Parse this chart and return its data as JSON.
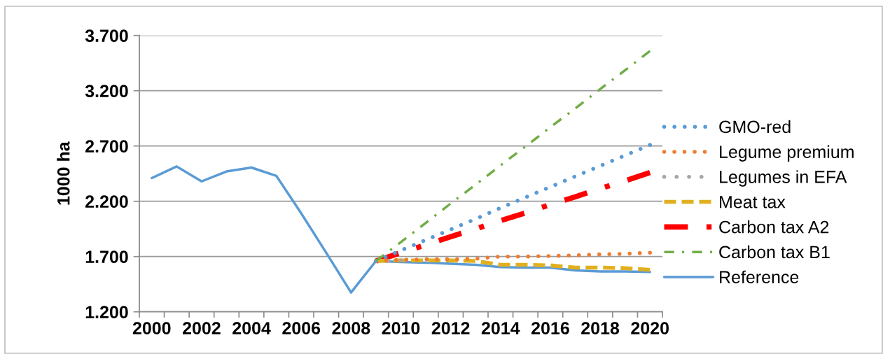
{
  "chart_data": {
    "type": "line",
    "ylabel": "1000 ha",
    "categories": [
      "2000",
      null,
      "2002",
      null,
      "2004",
      null,
      "2006",
      null,
      "2008",
      null,
      "2010",
      null,
      "2012",
      null,
      "2014",
      null,
      "2016",
      null,
      "2018",
      null,
      "2020"
    ],
    "series": [
      {
        "name": "GMO-red",
        "color": "#5b9bd5",
        "line_style": "dotted",
        "values": [
          null,
          null,
          null,
          null,
          null,
          null,
          null,
          null,
          null,
          1660,
          1755,
          1850,
          1945,
          2040,
          2140,
          2235,
          2330,
          2425,
          2520,
          2615,
          2710
        ]
      },
      {
        "name": "Legume premium",
        "color": "#ed7d31",
        "line_style": "dotted",
        "values": [
          null,
          null,
          null,
          null,
          null,
          null,
          null,
          null,
          null,
          1660,
          1670,
          1675,
          1675,
          1680,
          1700,
          1700,
          1705,
          1710,
          1720,
          1725,
          1735
        ]
      },
      {
        "name": "Legumes in EFA",
        "color": "#a5a5a5",
        "line_style": "dotted",
        "values": [
          null,
          null,
          null,
          null,
          null,
          null,
          null,
          null,
          null,
          1660,
          1665,
          null,
          null,
          null,
          null,
          null,
          null,
          null,
          null,
          null,
          null
        ]
      },
      {
        "name": "Meat tax",
        "color": "#e0b020",
        "line_style": "dashed",
        "values": [
          null,
          null,
          null,
          null,
          null,
          null,
          null,
          null,
          null,
          1660,
          1665,
          1665,
          1665,
          1660,
          1625,
          1625,
          1620,
          1600,
          1600,
          1595,
          1580
        ]
      },
      {
        "name": "Carbon tax A2",
        "color": "#ff0000",
        "line_style": "dashdot",
        "values": [
          null,
          null,
          null,
          null,
          null,
          null,
          null,
          null,
          null,
          1660,
          1735,
          1805,
          1880,
          1950,
          2025,
          2095,
          2170,
          2240,
          2315,
          2385,
          2460
        ]
      },
      {
        "name": "Carbon tax B1",
        "color": "#70ad47",
        "line_style": "dashdot",
        "values": [
          null,
          null,
          null,
          null,
          null,
          null,
          null,
          null,
          null,
          1660,
          1830,
          2005,
          2180,
          2350,
          2525,
          2695,
          2870,
          3040,
          3215,
          3385,
          3560
        ]
      },
      {
        "name": "Reference",
        "color": "#5b9bd5",
        "line_style": "solid",
        "values": [
          2410,
          2515,
          2380,
          2470,
          2505,
          2430,
          2090,
          1735,
          1375,
          1660,
          1650,
          1645,
          1635,
          1625,
          1605,
          1600,
          1600,
          1575,
          1565,
          1565,
          1560
        ]
      }
    ],
    "ylim": [
      1200,
      3700
    ],
    "yticks": [
      {
        "value": 1200,
        "label": "1.200"
      },
      {
        "value": 1700,
        "label": "1.700"
      },
      {
        "value": 2200,
        "label": "2.200"
      },
      {
        "value": 2700,
        "label": "2.700"
      },
      {
        "value": 3200,
        "label": "3.200"
      },
      {
        "value": 3700,
        "label": "3.700"
      }
    ],
    "grid": "y",
    "legend": "right"
  }
}
